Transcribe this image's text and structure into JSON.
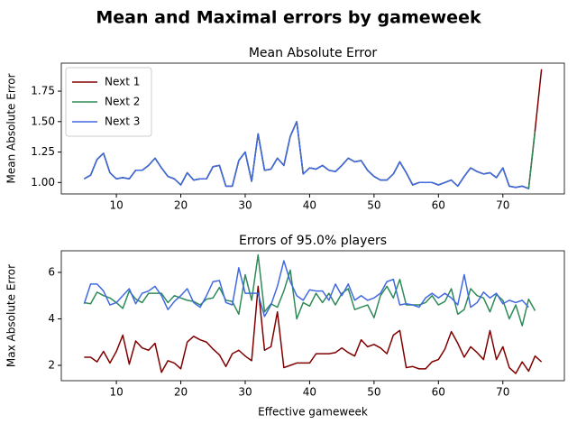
{
  "title": "Mean and Maximal errors by gameweek",
  "chart_data": [
    {
      "type": "line",
      "title": "Mean Absolute Error",
      "ylabel": "Mean Absolute Error",
      "legend": "upper left",
      "x": [
        5,
        6,
        7,
        8,
        9,
        10,
        11,
        12,
        13,
        14,
        15,
        16,
        17,
        18,
        19,
        20,
        21,
        22,
        23,
        24,
        25,
        26,
        27,
        28,
        29,
        30,
        31,
        32,
        33,
        34,
        35,
        36,
        37,
        38,
        39,
        40,
        41,
        42,
        43,
        44,
        45,
        46,
        47,
        48,
        49,
        50,
        51,
        52,
        53,
        54,
        55,
        56,
        57,
        58,
        59,
        60,
        61,
        62,
        63,
        64,
        65,
        66,
        67,
        68,
        69,
        70,
        71,
        72,
        73,
        74,
        75,
        76
      ],
      "xlim": [
        1.45,
        79.55
      ],
      "xticks": [
        10,
        20,
        30,
        40,
        50,
        60,
        70
      ],
      "ylim": [
        0.906,
        1.98
      ],
      "yticks": [
        {
          "value": 1.0,
          "label": "1.00"
        },
        {
          "value": 1.25,
          "label": "1.25"
        },
        {
          "value": 1.5,
          "label": "1.50"
        },
        {
          "value": 1.75,
          "label": "1.75"
        }
      ],
      "series": [
        {
          "name": "Next 1",
          "color": "#800000",
          "values": [
            1.03,
            1.06,
            1.19,
            1.24,
            1.08,
            1.03,
            1.04,
            1.03,
            1.1,
            1.1,
            1.14,
            1.2,
            1.12,
            1.05,
            1.03,
            0.98,
            1.08,
            1.02,
            1.03,
            1.03,
            1.13,
            1.14,
            0.97,
            0.97,
            1.18,
            1.25,
            1.01,
            1.4,
            1.1,
            1.11,
            1.2,
            1.14,
            1.38,
            1.5,
            1.07,
            1.12,
            1.11,
            1.14,
            1.1,
            1.09,
            1.14,
            1.2,
            1.17,
            1.18,
            1.1,
            1.05,
            1.02,
            1.02,
            1.07,
            1.17,
            1.08,
            0.98,
            1.0,
            1.0,
            1.0,
            0.98,
            1.0,
            1.02,
            0.97,
            1.05,
            1.12,
            1.09,
            1.07,
            1.08,
            1.04,
            1.12,
            0.97,
            0.96,
            0.97,
            0.95,
            1.43,
            1.93
          ]
        },
        {
          "name": "Next 2",
          "color": "#2e8b57",
          "values": [
            1.03,
            1.06,
            1.19,
            1.24,
            1.08,
            1.03,
            1.04,
            1.03,
            1.1,
            1.1,
            1.14,
            1.2,
            1.12,
            1.05,
            1.03,
            0.98,
            1.08,
            1.02,
            1.03,
            1.03,
            1.13,
            1.14,
            0.97,
            0.97,
            1.18,
            1.25,
            1.01,
            1.4,
            1.1,
            1.11,
            1.2,
            1.14,
            1.38,
            1.5,
            1.07,
            1.12,
            1.11,
            1.14,
            1.1,
            1.09,
            1.14,
            1.2,
            1.17,
            1.18,
            1.1,
            1.05,
            1.02,
            1.02,
            1.07,
            1.17,
            1.08,
            0.98,
            1.0,
            1.0,
            1.0,
            0.98,
            1.0,
            1.02,
            0.97,
            1.05,
            1.12,
            1.09,
            1.07,
            1.08,
            1.04,
            1.12,
            0.97,
            0.96,
            0.97,
            0.95,
            1.42,
            null
          ]
        },
        {
          "name": "Next 3",
          "color": "#4169e1",
          "values": [
            1.03,
            1.06,
            1.19,
            1.24,
            1.08,
            1.03,
            1.04,
            1.03,
            1.1,
            1.1,
            1.14,
            1.2,
            1.12,
            1.05,
            1.03,
            0.98,
            1.08,
            1.02,
            1.03,
            1.03,
            1.13,
            1.14,
            0.97,
            0.97,
            1.18,
            1.25,
            1.01,
            1.4,
            1.1,
            1.11,
            1.2,
            1.14,
            1.38,
            1.5,
            1.07,
            1.12,
            1.11,
            1.14,
            1.1,
            1.09,
            1.14,
            1.2,
            1.17,
            1.18,
            1.1,
            1.05,
            1.02,
            1.02,
            1.07,
            1.17,
            1.08,
            0.98,
            1.0,
            1.0,
            1.0,
            0.98,
            1.0,
            1.02,
            0.97,
            1.05,
            1.12,
            1.09,
            1.07,
            1.08,
            1.04,
            1.12,
            0.97,
            0.96,
            0.97,
            0.95,
            null,
            null
          ]
        }
      ]
    },
    {
      "type": "line",
      "title": "Errors of 95.0% players",
      "ylabel": "Max Absolute Error",
      "xlabel": "Effective gameweek",
      "x": [
        5,
        6,
        7,
        8,
        9,
        10,
        11,
        12,
        13,
        14,
        15,
        16,
        17,
        18,
        19,
        20,
        21,
        22,
        23,
        24,
        25,
        26,
        27,
        28,
        29,
        30,
        31,
        32,
        33,
        34,
        35,
        36,
        37,
        38,
        39,
        40,
        41,
        42,
        43,
        44,
        45,
        46,
        47,
        48,
        49,
        50,
        51,
        52,
        53,
        54,
        55,
        56,
        57,
        58,
        59,
        60,
        61,
        62,
        63,
        64,
        65,
        66,
        67,
        68,
        69,
        70,
        71,
        72,
        73,
        74,
        75,
        76
      ],
      "xlim": [
        1.45,
        79.55
      ],
      "xticks": [
        10,
        20,
        30,
        40,
        50,
        60,
        70
      ],
      "ylim": [
        1.34,
        6.93
      ],
      "yticks": [
        2,
        4,
        6
      ],
      "series": [
        {
          "color": "#800000",
          "values": [
            2.35,
            2.35,
            2.15,
            2.6,
            2.1,
            2.6,
            3.3,
            2.05,
            3.05,
            2.75,
            2.65,
            2.95,
            1.7,
            2.2,
            2.1,
            1.85,
            3.0,
            3.25,
            3.1,
            3.0,
            2.7,
            2.45,
            1.95,
            2.5,
            2.65,
            2.4,
            2.2,
            5.4,
            2.65,
            2.8,
            4.3,
            1.9,
            2.0,
            2.1,
            2.1,
            2.1,
            2.5,
            2.5,
            2.5,
            2.55,
            2.75,
            2.55,
            2.4,
            3.1,
            2.8,
            2.9,
            2.75,
            2.5,
            3.3,
            3.5,
            1.9,
            1.95,
            1.85,
            1.85,
            2.15,
            2.25,
            2.7,
            3.45,
            2.95,
            2.35,
            2.8,
            2.55,
            2.25,
            3.5,
            2.25,
            2.8,
            1.9,
            1.65,
            2.15,
            1.75,
            2.4,
            2.15
          ]
        },
        {
          "color": "#2e8b57",
          "values": [
            4.7,
            4.65,
            5.15,
            5.0,
            4.9,
            4.7,
            4.45,
            5.2,
            4.85,
            4.7,
            5.1,
            5.1,
            5.1,
            4.7,
            5.0,
            4.9,
            4.8,
            4.75,
            4.6,
            4.85,
            4.9,
            5.35,
            4.8,
            4.75,
            4.2,
            5.9,
            4.8,
            6.75,
            4.3,
            4.65,
            4.5,
            5.2,
            6.1,
            4.0,
            4.7,
            4.55,
            5.1,
            4.7,
            5.1,
            4.6,
            5.1,
            5.3,
            4.4,
            4.5,
            4.6,
            4.05,
            5.0,
            5.4,
            4.9,
            5.7,
            4.6,
            4.6,
            4.6,
            4.7,
            5.0,
            4.6,
            4.75,
            5.3,
            4.2,
            4.4,
            5.3,
            5.0,
            4.9,
            4.3,
            5.05,
            4.8,
            4.0,
            4.6,
            3.7,
            4.85,
            4.35,
            null
          ]
        },
        {
          "color": "#4169e1",
          "values": [
            4.65,
            5.5,
            5.5,
            5.2,
            4.6,
            4.7,
            5.0,
            5.3,
            4.65,
            5.1,
            5.2,
            5.4,
            5.0,
            4.4,
            4.75,
            5.0,
            5.3,
            4.7,
            4.5,
            5.0,
            5.6,
            5.65,
            4.7,
            4.6,
            6.2,
            5.1,
            5.1,
            5.1,
            4.1,
            4.6,
            5.4,
            6.5,
            5.6,
            5.0,
            4.8,
            5.25,
            5.2,
            5.2,
            4.8,
            5.5,
            5.0,
            5.5,
            4.8,
            5.0,
            4.8,
            4.9,
            5.1,
            5.6,
            5.7,
            4.6,
            4.65,
            4.6,
            4.5,
            4.9,
            5.1,
            4.9,
            5.1,
            4.9,
            4.6,
            5.9,
            4.5,
            4.7,
            5.15,
            4.9,
            5.1,
            4.65,
            4.8,
            4.7,
            4.8,
            4.5,
            null,
            null
          ]
        }
      ]
    }
  ]
}
